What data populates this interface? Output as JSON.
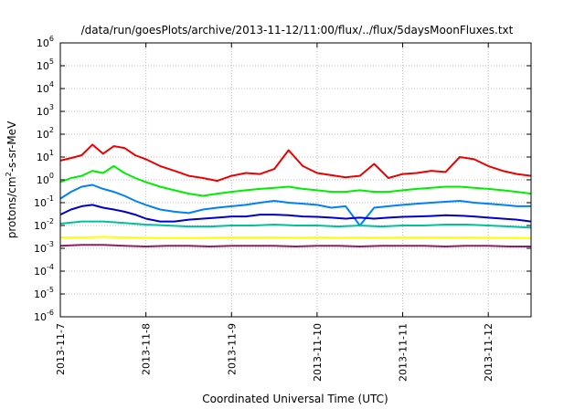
{
  "chart_data": {
    "type": "line",
    "title": "/data/run/goesPlots/archive/2013-11-12/11:00/flux/../flux/5daysMoonFluxes.txt",
    "xlabel": "Coordinated Universal Time (UTC)",
    "ylabel": "protons/cm^2-s-sr-MeV",
    "ylabel_parts": {
      "base": "protons/cm",
      "sup": "2",
      "rest": "-s-sr-MeV"
    },
    "yscale": "log",
    "ylim": [
      1e-06,
      1000000.0
    ],
    "yticks": [
      {
        "base": "10",
        "exp": "-6",
        "value": 1e-06
      },
      {
        "base": "10",
        "exp": "-5",
        "value": 1e-05
      },
      {
        "base": "10",
        "exp": "-4",
        "value": 0.0001
      },
      {
        "base": "10",
        "exp": "-3",
        "value": 0.001
      },
      {
        "base": "10",
        "exp": "-2",
        "value": 0.01
      },
      {
        "base": "10",
        "exp": "-1",
        "value": 0.1
      },
      {
        "base": "10",
        "exp": "0",
        "value": 1
      },
      {
        "base": "10",
        "exp": "1",
        "value": 10
      },
      {
        "base": "10",
        "exp": "2",
        "value": 100
      },
      {
        "base": "10",
        "exp": "3",
        "value": 1000
      },
      {
        "base": "10",
        "exp": "4",
        "value": 10000
      },
      {
        "base": "10",
        "exp": "5",
        "value": 100000
      },
      {
        "base": "10",
        "exp": "6",
        "value": 1000000
      }
    ],
    "xlim": [
      "2013-11-07",
      "2013-11-12T12:00"
    ],
    "xticks": [
      {
        "label": "2013-11-7",
        "value": "2013-11-07"
      },
      {
        "label": "2013-11-8",
        "value": "2013-11-08"
      },
      {
        "label": "2013-11-9",
        "value": "2013-11-09"
      },
      {
        "label": "2013-11-10",
        "value": "2013-11-10"
      },
      {
        "label": "2013-11-11",
        "value": "2013-11-11"
      },
      {
        "label": "2013-11-12",
        "value": "2013-11-12"
      }
    ],
    "grid": true,
    "series": [
      {
        "color": "#ee0000",
        "x": [
          "2013-11-07T00:00",
          "2013-11-07T03:00",
          "2013-11-07T06:00",
          "2013-11-07T09:00",
          "2013-11-07T12:00",
          "2013-11-07T15:00",
          "2013-11-07T18:00",
          "2013-11-07T21:00",
          "2013-11-08T00:00",
          "2013-11-08T04:00",
          "2013-11-08T08:00",
          "2013-11-08T12:00",
          "2013-11-08T16:00",
          "2013-11-08T20:00",
          "2013-11-09T00:00",
          "2013-11-09T04:00",
          "2013-11-09T08:00",
          "2013-11-09T12:00",
          "2013-11-09T16:00",
          "2013-11-09T20:00",
          "2013-11-10T00:00",
          "2013-11-10T04:00",
          "2013-11-10T08:00",
          "2013-11-10T12:00",
          "2013-11-10T16:00",
          "2013-11-10T20:00",
          "2013-11-11T00:00",
          "2013-11-11T04:00",
          "2013-11-11T08:00",
          "2013-11-11T12:00",
          "2013-11-11T16:00",
          "2013-11-11T20:00",
          "2013-11-12T00:00",
          "2013-11-12T04:00",
          "2013-11-12T08:00",
          "2013-11-12T12:00"
        ],
        "values": [
          7,
          9,
          12,
          35,
          14,
          30,
          25,
          12,
          8,
          4,
          2.5,
          1.5,
          1.2,
          0.9,
          1.5,
          2,
          1.8,
          3,
          20,
          4,
          2,
          1.6,
          1.3,
          1.5,
          5,
          1.2,
          1.8,
          2,
          2.5,
          2.2,
          10,
          8,
          4,
          2.5,
          1.8,
          1.5
        ]
      },
      {
        "color": "#00ee00",
        "x": [
          "2013-11-07T00:00",
          "2013-11-07T03:00",
          "2013-11-07T06:00",
          "2013-11-07T09:00",
          "2013-11-07T12:00",
          "2013-11-07T15:00",
          "2013-11-07T18:00",
          "2013-11-07T21:00",
          "2013-11-08T00:00",
          "2013-11-08T04:00",
          "2013-11-08T08:00",
          "2013-11-08T12:00",
          "2013-11-08T16:00",
          "2013-11-08T20:00",
          "2013-11-09T00:00",
          "2013-11-09T04:00",
          "2013-11-09T08:00",
          "2013-11-09T12:00",
          "2013-11-09T16:00",
          "2013-11-09T20:00",
          "2013-11-10T00:00",
          "2013-11-10T04:00",
          "2013-11-10T08:00",
          "2013-11-10T12:00",
          "2013-11-10T16:00",
          "2013-11-10T20:00",
          "2013-11-11T00:00",
          "2013-11-11T04:00",
          "2013-11-11T08:00",
          "2013-11-11T12:00",
          "2013-11-11T16:00",
          "2013-11-11T20:00",
          "2013-11-12T00:00",
          "2013-11-12T04:00",
          "2013-11-12T08:00",
          "2013-11-12T12:00"
        ],
        "values": [
          0.8,
          1.2,
          1.5,
          2.5,
          2,
          4,
          2,
          1.2,
          0.8,
          0.5,
          0.35,
          0.25,
          0.2,
          0.25,
          0.3,
          0.35,
          0.4,
          0.45,
          0.5,
          0.4,
          0.35,
          0.3,
          0.3,
          0.35,
          0.3,
          0.3,
          0.35,
          0.4,
          0.45,
          0.5,
          0.5,
          0.45,
          0.4,
          0.35,
          0.3,
          0.25
        ]
      },
      {
        "color": "#0080ff",
        "x": [
          "2013-11-07T00:00",
          "2013-11-07T03:00",
          "2013-11-07T06:00",
          "2013-11-07T09:00",
          "2013-11-07T12:00",
          "2013-11-07T15:00",
          "2013-11-07T18:00",
          "2013-11-07T21:00",
          "2013-11-08T00:00",
          "2013-11-08T04:00",
          "2013-11-08T08:00",
          "2013-11-08T12:00",
          "2013-11-08T16:00",
          "2013-11-08T20:00",
          "2013-11-09T00:00",
          "2013-11-09T04:00",
          "2013-11-09T08:00",
          "2013-11-09T12:00",
          "2013-11-09T16:00",
          "2013-11-09T20:00",
          "2013-11-10T00:00",
          "2013-11-10T04:00",
          "2013-11-10T08:00",
          "2013-11-10T12:00",
          "2013-11-10T16:00",
          "2013-11-10T20:00",
          "2013-11-11T00:00",
          "2013-11-11T04:00",
          "2013-11-11T08:00",
          "2013-11-11T12:00",
          "2013-11-11T16:00",
          "2013-11-11T20:00",
          "2013-11-12T00:00",
          "2013-11-12T04:00",
          "2013-11-12T08:00",
          "2013-11-12T12:00"
        ],
        "values": [
          0.15,
          0.3,
          0.5,
          0.6,
          0.4,
          0.3,
          0.2,
          0.12,
          0.08,
          0.05,
          0.04,
          0.035,
          0.05,
          0.06,
          0.07,
          0.08,
          0.1,
          0.12,
          0.1,
          0.09,
          0.08,
          0.06,
          0.07,
          0.01,
          0.06,
          0.07,
          0.08,
          0.09,
          0.1,
          0.11,
          0.12,
          0.1,
          0.09,
          0.08,
          0.07,
          0.07
        ]
      },
      {
        "color": "#0000cc",
        "x": [
          "2013-11-07T00:00",
          "2013-11-07T03:00",
          "2013-11-07T06:00",
          "2013-11-07T09:00",
          "2013-11-07T12:00",
          "2013-11-07T15:00",
          "2013-11-07T18:00",
          "2013-11-07T21:00",
          "2013-11-08T00:00",
          "2013-11-08T04:00",
          "2013-11-08T08:00",
          "2013-11-08T12:00",
          "2013-11-08T16:00",
          "2013-11-08T20:00",
          "2013-11-09T00:00",
          "2013-11-09T04:00",
          "2013-11-09T08:00",
          "2013-11-09T12:00",
          "2013-11-09T16:00",
          "2013-11-09T20:00",
          "2013-11-10T00:00",
          "2013-11-10T04:00",
          "2013-11-10T08:00",
          "2013-11-10T12:00",
          "2013-11-10T16:00",
          "2013-11-10T20:00",
          "2013-11-11T00:00",
          "2013-11-11T04:00",
          "2013-11-11T08:00",
          "2013-11-11T12:00",
          "2013-11-11T16:00",
          "2013-11-11T20:00",
          "2013-11-12T00:00",
          "2013-11-12T04:00",
          "2013-11-12T08:00",
          "2013-11-12T12:00"
        ],
        "values": [
          0.03,
          0.05,
          0.07,
          0.08,
          0.06,
          0.05,
          0.04,
          0.03,
          0.02,
          0.015,
          0.015,
          0.018,
          0.02,
          0.022,
          0.025,
          0.025,
          0.03,
          0.03,
          0.028,
          0.025,
          0.024,
          0.022,
          0.02,
          0.022,
          0.02,
          0.022,
          0.024,
          0.025,
          0.026,
          0.028,
          0.027,
          0.025,
          0.022,
          0.02,
          0.018,
          0.015
        ]
      },
      {
        "color": "#00c0a0",
        "x": [
          "2013-11-07T00:00",
          "2013-11-07T06:00",
          "2013-11-07T12:00",
          "2013-11-07T18:00",
          "2013-11-08T00:00",
          "2013-11-08T06:00",
          "2013-11-08T12:00",
          "2013-11-08T18:00",
          "2013-11-09T00:00",
          "2013-11-09T06:00",
          "2013-11-09T12:00",
          "2013-11-09T18:00",
          "2013-11-10T00:00",
          "2013-11-10T06:00",
          "2013-11-10T12:00",
          "2013-11-10T18:00",
          "2013-11-11T00:00",
          "2013-11-11T06:00",
          "2013-11-11T12:00",
          "2013-11-11T18:00",
          "2013-11-12T00:00",
          "2013-11-12T06:00",
          "2013-11-12T12:00"
        ],
        "values": [
          0.012,
          0.015,
          0.015,
          0.013,
          0.011,
          0.01,
          0.009,
          0.009,
          0.01,
          0.01,
          0.011,
          0.01,
          0.01,
          0.009,
          0.01,
          0.009,
          0.01,
          0.01,
          0.011,
          0.011,
          0.01,
          0.009,
          0.008
        ]
      },
      {
        "color": "#ffff00",
        "x": [
          "2013-11-07T00:00",
          "2013-11-07T06:00",
          "2013-11-07T12:00",
          "2013-11-07T18:00",
          "2013-11-08T00:00",
          "2013-11-08T06:00",
          "2013-11-08T12:00",
          "2013-11-08T18:00",
          "2013-11-09T00:00",
          "2013-11-09T06:00",
          "2013-11-09T12:00",
          "2013-11-09T18:00",
          "2013-11-10T00:00",
          "2013-11-10T06:00",
          "2013-11-10T12:00",
          "2013-11-10T18:00",
          "2013-11-11T00:00",
          "2013-11-11T06:00",
          "2013-11-11T12:00",
          "2013-11-11T18:00",
          "2013-11-12T00:00",
          "2013-11-12T06:00",
          "2013-11-12T12:00"
        ],
        "values": [
          0.003,
          0.003,
          0.0032,
          0.003,
          0.0029,
          0.0028,
          0.0028,
          0.0029,
          0.003,
          0.003,
          0.003,
          0.0029,
          0.003,
          0.0029,
          0.003,
          0.0029,
          0.003,
          0.003,
          0.003,
          0.003,
          0.0029,
          0.0029,
          0.0028
        ]
      },
      {
        "color": "#8b2060",
        "x": [
          "2013-11-07T00:00",
          "2013-11-07T06:00",
          "2013-11-07T12:00",
          "2013-11-07T18:00",
          "2013-11-08T00:00",
          "2013-11-08T06:00",
          "2013-11-08T12:00",
          "2013-11-08T18:00",
          "2013-11-09T00:00",
          "2013-11-09T06:00",
          "2013-11-09T12:00",
          "2013-11-09T18:00",
          "2013-11-10T00:00",
          "2013-11-10T06:00",
          "2013-11-10T12:00",
          "2013-11-10T18:00",
          "2013-11-11T00:00",
          "2013-11-11T06:00",
          "2013-11-11T12:00",
          "2013-11-11T18:00",
          "2013-11-12T00:00",
          "2013-11-12T06:00",
          "2013-11-12T12:00"
        ],
        "values": [
          0.0013,
          0.0014,
          0.0014,
          0.0013,
          0.0012,
          0.0013,
          0.0013,
          0.0012,
          0.0013,
          0.0013,
          0.0013,
          0.0012,
          0.0013,
          0.0013,
          0.0012,
          0.0013,
          0.0013,
          0.0013,
          0.0012,
          0.0013,
          0.0013,
          0.0012,
          0.0012
        ]
      }
    ]
  }
}
